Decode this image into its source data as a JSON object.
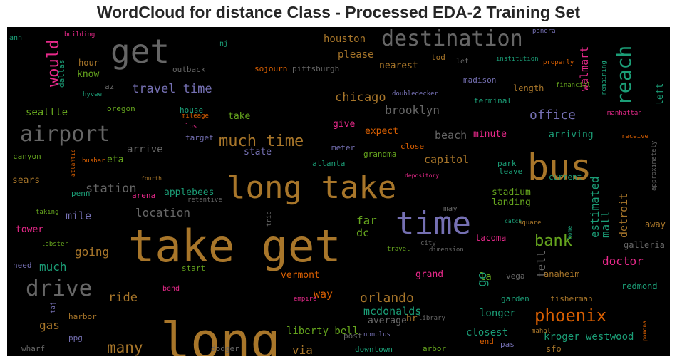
{
  "title": "WordCloud for distance Class - Processed EDA-2 Training Set",
  "chart_data": {
    "type": "wordcloud",
    "background": "#000000",
    "words": [
      {
        "text": "take get",
        "color": "#a8762a"
      },
      {
        "text": "long",
        "color": "#a8762a"
      },
      {
        "text": "long take",
        "color": "#a8762a"
      },
      {
        "text": "bus",
        "color": "#a8762a"
      },
      {
        "text": "time",
        "color": "#7570b3"
      },
      {
        "text": "get",
        "color": "#666666"
      },
      {
        "text": "destination",
        "color": "#666666"
      },
      {
        "text": "airport",
        "color": "#666666"
      },
      {
        "text": "drive",
        "color": "#666666"
      },
      {
        "text": "reach",
        "color": "#1b9e77"
      },
      {
        "text": "much time",
        "color": "#a8762a"
      },
      {
        "text": "phoenix",
        "color": "#d95f02"
      },
      {
        "text": "bank",
        "color": "#66a61e"
      },
      {
        "text": "orlando",
        "color": "#a8762a"
      },
      {
        "text": "many",
        "color": "#a8762a"
      },
      {
        "text": "would",
        "color": "#e7298a"
      },
      {
        "text": "travel time",
        "color": "#7570b3"
      },
      {
        "text": "chicago",
        "color": "#a8762a"
      },
      {
        "text": "office",
        "color": "#7570b3"
      },
      {
        "text": "brooklyn",
        "color": "#666666"
      },
      {
        "text": "station",
        "color": "#666666"
      },
      {
        "text": "location",
        "color": "#666666"
      },
      {
        "text": "estimated",
        "color": "#1b9e77"
      },
      {
        "text": "mall",
        "color": "#1b9e77"
      },
      {
        "text": "detroit",
        "color": "#a8762a"
      },
      {
        "text": "go",
        "color": "#1b9e77"
      },
      {
        "text": "tell",
        "color": "#666666"
      },
      {
        "text": "walmart",
        "color": "#e7298a"
      },
      {
        "text": "doctor",
        "color": "#e7298a"
      },
      {
        "text": "ride",
        "color": "#a8762a"
      },
      {
        "text": "going",
        "color": "#a8762a"
      },
      {
        "text": "mile",
        "color": "#7570b3"
      },
      {
        "text": "much",
        "color": "#1b9e77"
      },
      {
        "text": "far",
        "color": "#66a61e"
      },
      {
        "text": "dc",
        "color": "#66a61e"
      },
      {
        "text": "gas",
        "color": "#a8762a"
      },
      {
        "text": "via",
        "color": "#a8762a"
      },
      {
        "text": "way",
        "color": "#d95f02"
      },
      {
        "text": "mcdonalds",
        "color": "#1b9e77"
      },
      {
        "text": "beach",
        "color": "#666666"
      },
      {
        "text": "capitol",
        "color": "#a8762a"
      },
      {
        "text": "houston",
        "color": "#a8762a"
      },
      {
        "text": "please",
        "color": "#a8762a"
      },
      {
        "text": "nearest",
        "color": "#a8762a"
      },
      {
        "text": "seattle",
        "color": "#66a61e"
      },
      {
        "text": "applebees",
        "color": "#1b9e77"
      },
      {
        "text": "sears",
        "color": "#a8762a"
      },
      {
        "text": "tower",
        "color": "#e7298a"
      },
      {
        "text": "arrive",
        "color": "#666666"
      },
      {
        "text": "eta",
        "color": "#66a61e"
      },
      {
        "text": "give",
        "color": "#e7298a"
      },
      {
        "text": "expect",
        "color": "#d95f02"
      },
      {
        "text": "minute",
        "color": "#e7298a"
      },
      {
        "text": "arriving",
        "color": "#1b9e77"
      },
      {
        "text": "stadium",
        "color": "#66a61e"
      },
      {
        "text": "landing",
        "color": "#66a61e"
      },
      {
        "text": "take",
        "color": "#66a61e"
      },
      {
        "text": "know",
        "color": "#66a61e"
      },
      {
        "text": "hour",
        "color": "#a8762a"
      },
      {
        "text": "state",
        "color": "#7570b3"
      },
      {
        "text": "left",
        "color": "#1b9e77"
      },
      {
        "text": "vermont",
        "color": "#d95f02"
      },
      {
        "text": "grand",
        "color": "#e7298a"
      },
      {
        "text": "la",
        "color": "#66a61e"
      },
      {
        "text": "liberty bell",
        "color": "#66a61e"
      },
      {
        "text": "longer",
        "color": "#1b9e77"
      },
      {
        "text": "closest",
        "color": "#1b9e77"
      },
      {
        "text": "kroger westwood",
        "color": "#1b9e77"
      },
      {
        "text": "average",
        "color": "#666666"
      },
      {
        "text": "anaheim",
        "color": "#a8762a"
      },
      {
        "text": "tacoma",
        "color": "#e7298a"
      },
      {
        "text": "galleria",
        "color": "#666666"
      },
      {
        "text": "redmond",
        "color": "#1b9e77"
      },
      {
        "text": "away",
        "color": "#a8762a"
      },
      {
        "text": "length",
        "color": "#a8762a"
      },
      {
        "text": "madison",
        "color": "#7570b3"
      },
      {
        "text": "terminal",
        "color": "#1b9e77"
      },
      {
        "text": "sojourn",
        "color": "#d95f02"
      },
      {
        "text": "pittsburgh",
        "color": "#666666"
      },
      {
        "text": "oregon",
        "color": "#66a61e"
      },
      {
        "text": "house",
        "color": "#1b9e77"
      },
      {
        "text": "canyon",
        "color": "#66a61e"
      },
      {
        "text": "penn",
        "color": "#1b9e77"
      },
      {
        "text": "arena",
        "color": "#e7298a"
      },
      {
        "text": "atlanta",
        "color": "#1b9e77"
      },
      {
        "text": "grandma",
        "color": "#66a61e"
      },
      {
        "text": "meter",
        "color": "#7570b3"
      },
      {
        "text": "close",
        "color": "#d95f02"
      },
      {
        "text": "park",
        "color": "#1b9e77"
      },
      {
        "text": "leave",
        "color": "#1b9e77"
      },
      {
        "text": "current",
        "color": "#1b9e77"
      },
      {
        "text": "target",
        "color": "#7570b3"
      },
      {
        "text": "outback",
        "color": "#666666"
      },
      {
        "text": "az",
        "color": "#666666"
      },
      {
        "text": "dallas",
        "color": "#1b9e77"
      },
      {
        "text": "need",
        "color": "#7570b3"
      },
      {
        "text": "start",
        "color": "#66a61e"
      },
      {
        "text": "harbor",
        "color": "#a8762a"
      },
      {
        "text": "ppg",
        "color": "#7570b3"
      },
      {
        "text": "wharf",
        "color": "#666666"
      },
      {
        "text": "dodger",
        "color": "#666666"
      },
      {
        "text": "downtown",
        "color": "#1b9e77"
      },
      {
        "text": "arbor",
        "color": "#66a61e"
      },
      {
        "text": "hr",
        "color": "#a8762a"
      },
      {
        "text": "post",
        "color": "#666666"
      },
      {
        "text": "end",
        "color": "#d95f02"
      },
      {
        "text": "pas",
        "color": "#7570b3"
      },
      {
        "text": "sfo",
        "color": "#a8762a"
      },
      {
        "text": "garden",
        "color": "#1b9e77"
      },
      {
        "text": "fisherman",
        "color": "#a8762a"
      },
      {
        "text": "vega",
        "color": "#666666"
      },
      {
        "text": "may",
        "color": "#666666"
      },
      {
        "text": "bend",
        "color": "#e7298a"
      },
      {
        "text": "ann",
        "color": "#1b9e77"
      },
      {
        "text": "building",
        "color": "#e7298a"
      },
      {
        "text": "nj",
        "color": "#1b9e77"
      },
      {
        "text": "tod",
        "color": "#a8762a"
      },
      {
        "text": "let",
        "color": "#666666"
      },
      {
        "text": "panera",
        "color": "#7570b3"
      },
      {
        "text": "institution",
        "color": "#1b9e77"
      },
      {
        "text": "properly",
        "color": "#d95f02"
      },
      {
        "text": "financial",
        "color": "#66a61e"
      },
      {
        "text": "remaining",
        "color": "#1b9e77"
      },
      {
        "text": "manhattan",
        "color": "#e7298a"
      },
      {
        "text": "receive",
        "color": "#d95f02"
      },
      {
        "text": "approximately",
        "color": "#666666"
      },
      {
        "text": "doubledecker",
        "color": "#7570b3"
      },
      {
        "text": "hyvee",
        "color": "#1b9e77"
      },
      {
        "text": "mileage",
        "color": "#d95f02"
      },
      {
        "text": "los",
        "color": "#e7298a"
      },
      {
        "text": "atlantic",
        "color": "#d95f02"
      },
      {
        "text": "busbar",
        "color": "#d95f02"
      },
      {
        "text": "fourth",
        "color": "#a8762a"
      },
      {
        "text": "depository",
        "color": "#e7298a"
      },
      {
        "text": "retentive",
        "color": "#666666"
      },
      {
        "text": "taking",
        "color": "#66a61e"
      },
      {
        "text": "trip",
        "color": "#666666"
      },
      {
        "text": "catch",
        "color": "#1b9e77"
      },
      {
        "text": "square",
        "color": "#a8762a"
      },
      {
        "text": "home",
        "color": "#1b9e77"
      },
      {
        "text": "lobster",
        "color": "#66a61e"
      },
      {
        "text": "travel",
        "color": "#66a61e"
      },
      {
        "text": "city",
        "color": "#666666"
      },
      {
        "text": "dimension",
        "color": "#666666"
      },
      {
        "text": "taj",
        "color": "#7570b3"
      },
      {
        "text": "empire",
        "color": "#e7298a"
      },
      {
        "text": "library",
        "color": "#666666"
      },
      {
        "text": "nonplus",
        "color": "#7570b3"
      },
      {
        "text": "mahal",
        "color": "#a8762a"
      },
      {
        "text": "pomona",
        "color": "#d95f02"
      }
    ]
  }
}
